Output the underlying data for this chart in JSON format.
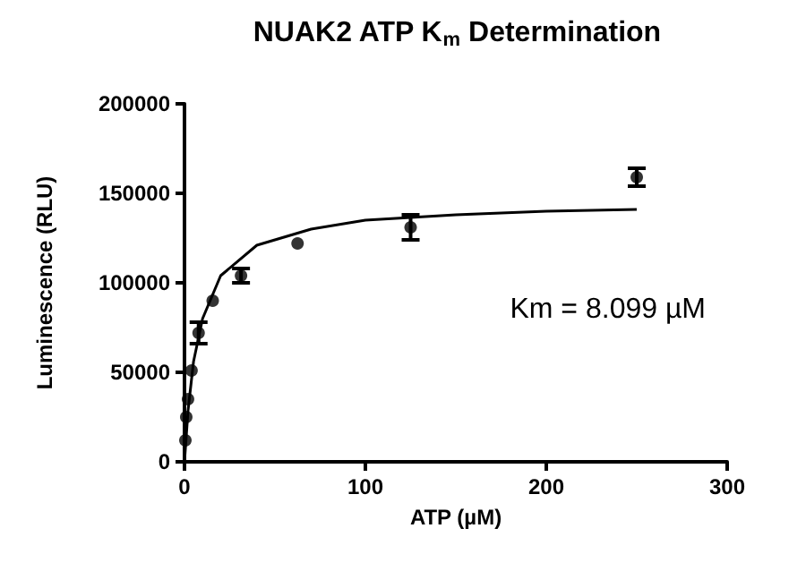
{
  "chart_data": {
    "type": "scatter",
    "title": "NUAK2 ATP K$_{m}$ Determination",
    "xlabel": "ATP (µM)",
    "ylabel": "Luminescence (RLU)",
    "annotations": [
      "Km = 8.099 µM"
    ],
    "xlim": [
      0,
      300
    ],
    "xticks": [
      0,
      100,
      200,
      300
    ],
    "ylim": [
      0,
      200000
    ],
    "yticks": [
      0,
      50000,
      100000,
      150000,
      200000
    ],
    "grid": false,
    "marker": "circle",
    "series": [
      {
        "color": "#000000",
        "x": [
          250,
          125,
          62.5,
          31.25,
          15.6,
          7.8,
          3.9,
          1.95,
          0.98,
          0.49
        ],
        "values": [
          159000,
          131000,
          122000,
          104000,
          90000,
          72000,
          51000,
          35000,
          25000,
          12000
        ],
        "errors": [
          5000,
          7000,
          null,
          4000,
          null,
          6000,
          null,
          null,
          null,
          null
        ]
      },
      {
        "type": "line",
        "color": "#000000",
        "marker": "none",
        "x": [
          0,
          2,
          5,
          10,
          20,
          40,
          70,
          100,
          150,
          200,
          250
        ],
        "values": [
          0,
          29000,
          56000,
          80000,
          104000,
          121000,
          130000,
          135000,
          138000,
          140000,
          141000
        ]
      }
    ]
  }
}
